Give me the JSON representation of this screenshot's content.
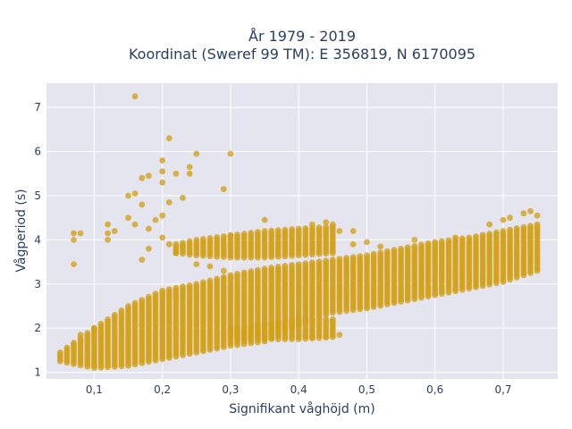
{
  "chart_data": {
    "type": "scatter",
    "title_line1": "År 1979 - 2019",
    "title_line2": "Koordinat (Sweref 99 TM): E 356819, N 6170095",
    "xlabel": "Signifikant våghöjd (m)",
    "ylabel": "Vågperiod (s)",
    "xlim": [
      0.03,
      0.78
    ],
    "ylim": [
      0.85,
      7.55
    ],
    "x_ticks": [
      0.1,
      0.2,
      0.3,
      0.4,
      0.5,
      0.6,
      0.7
    ],
    "x_tick_labels": [
      "0,1",
      "0,2",
      "0,3",
      "0,4",
      "0,5",
      "0,6",
      "0,7"
    ],
    "y_ticks": [
      1,
      2,
      3,
      4,
      5,
      6,
      7
    ],
    "y_tick_labels": [
      "1",
      "2",
      "3",
      "4",
      "5",
      "6",
      "7"
    ],
    "grid": true,
    "marker_color": "#d4a017",
    "plot_bg": "#e5e5f0",
    "band_x_step": 0.01,
    "main_band": {
      "x": [
        0.05,
        0.1,
        0.15,
        0.2,
        0.25,
        0.3,
        0.35,
        0.4,
        0.45,
        0.5,
        0.55,
        0.6,
        0.65,
        0.7,
        0.75
      ],
      "y_low": [
        1.25,
        1.1,
        1.15,
        1.3,
        1.45,
        1.6,
        1.7,
        2.1,
        2.35,
        2.45,
        2.6,
        2.75,
        2.9,
        3.05,
        3.3
      ],
      "y_high": [
        1.45,
        2.0,
        2.5,
        2.85,
        3.0,
        3.2,
        3.35,
        3.45,
        3.55,
        3.65,
        3.8,
        3.95,
        4.05,
        4.2,
        4.35
      ]
    },
    "upper_band": {
      "x": [
        0.22,
        0.25,
        0.3,
        0.35,
        0.4,
        0.45
      ],
      "y_low": [
        3.7,
        3.65,
        3.6,
        3.6,
        3.65,
        3.7
      ],
      "y_high": [
        3.9,
        4.0,
        4.1,
        4.2,
        4.25,
        4.3
      ]
    },
    "lower_band": {
      "x": [
        0.3,
        0.35,
        0.4,
        0.45
      ],
      "y_low": [
        1.75,
        1.75,
        1.75,
        1.8
      ],
      "y_high": [
        2.0,
        2.1,
        2.2,
        2.2
      ]
    },
    "outliers": [
      [
        0.16,
        7.25
      ],
      [
        0.21,
        6.3
      ],
      [
        0.2,
        5.8
      ],
      [
        0.25,
        5.95
      ],
      [
        0.3,
        5.95
      ],
      [
        0.2,
        5.55
      ],
      [
        0.22,
        5.5
      ],
      [
        0.24,
        5.5
      ],
      [
        0.24,
        5.65
      ],
      [
        0.18,
        5.45
      ],
      [
        0.17,
        5.4
      ],
      [
        0.2,
        5.3
      ],
      [
        0.15,
        5.0
      ],
      [
        0.16,
        5.05
      ],
      [
        0.17,
        4.8
      ],
      [
        0.21,
        4.85
      ],
      [
        0.23,
        4.95
      ],
      [
        0.29,
        5.15
      ],
      [
        0.15,
        4.5
      ],
      [
        0.19,
        4.45
      ],
      [
        0.2,
        4.55
      ],
      [
        0.16,
        4.35
      ],
      [
        0.18,
        4.25
      ],
      [
        0.12,
        4.35
      ],
      [
        0.12,
        4.15
      ],
      [
        0.13,
        4.2
      ],
      [
        0.07,
        4.15
      ],
      [
        0.08,
        4.15
      ],
      [
        0.07,
        4.0
      ],
      [
        0.12,
        4.0
      ],
      [
        0.18,
        3.8
      ],
      [
        0.17,
        3.55
      ],
      [
        0.07,
        3.45
      ],
      [
        0.2,
        4.05
      ],
      [
        0.21,
        3.9
      ],
      [
        0.23,
        3.85
      ],
      [
        0.22,
        3.7
      ],
      [
        0.25,
        3.45
      ],
      [
        0.27,
        3.4
      ],
      [
        0.29,
        3.3
      ],
      [
        0.48,
        3.9
      ],
      [
        0.5,
        3.95
      ],
      [
        0.52,
        3.85
      ],
      [
        0.57,
        4.0
      ],
      [
        0.63,
        4.05
      ],
      [
        0.68,
        4.35
      ],
      [
        0.7,
        4.45
      ],
      [
        0.71,
        4.5
      ],
      [
        0.73,
        4.6
      ],
      [
        0.74,
        4.65
      ],
      [
        0.75,
        4.55
      ],
      [
        0.46,
        4.2
      ],
      [
        0.48,
        4.2
      ],
      [
        0.45,
        4.35
      ],
      [
        0.44,
        4.4
      ],
      [
        0.35,
        4.45
      ],
      [
        0.42,
        4.35
      ],
      [
        0.3,
        4.1
      ],
      [
        0.08,
        1.85
      ],
      [
        0.1,
        2.0
      ],
      [
        0.46,
        1.85
      ],
      [
        0.44,
        1.8
      ],
      [
        0.42,
        1.8
      ]
    ]
  }
}
